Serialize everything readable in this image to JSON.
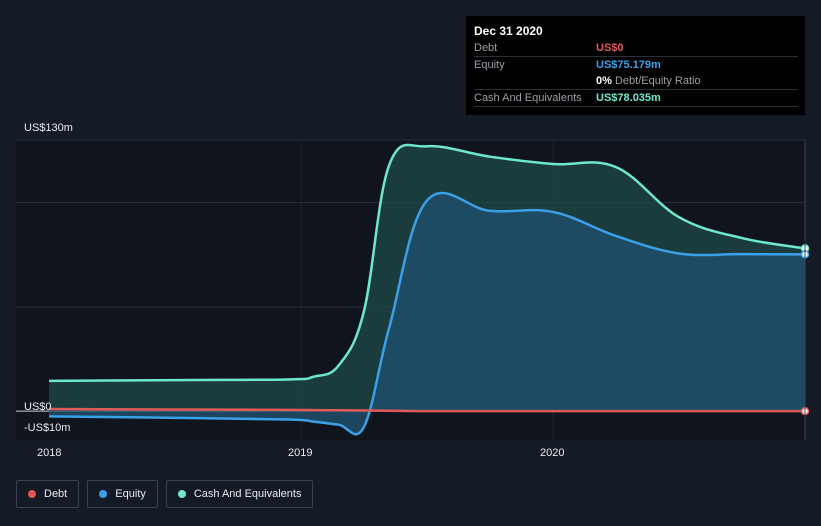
{
  "tooltip": {
    "date": "Dec 31 2020",
    "rows": [
      {
        "label": "Debt",
        "value": "US$0",
        "color": "#e05a5a"
      },
      {
        "label": "Equity",
        "value": "US$75.179m",
        "color": "#3aa0e8"
      },
      {
        "label": "",
        "value": "0%",
        "sub": "Debt/Equity Ratio",
        "color": "#ffffff"
      },
      {
        "label": "Cash And Equivalents",
        "value": "US$78.035m",
        "color": "#6ee7cf"
      }
    ]
  },
  "chart_data": {
    "type": "area",
    "title": "",
    "xlabel": "",
    "ylabel": "",
    "ylim": [
      -10,
      130
    ],
    "y_tick_labels": [
      "US$130m",
      "US$0",
      "-US$10m"
    ],
    "x_tick_labels": [
      "2018",
      "2019",
      "2020"
    ],
    "x": [
      2018.0,
      2018.5,
      2018.95,
      2019.05,
      2019.15,
      2019.25,
      2019.35,
      2019.5,
      2019.75,
      2020.0,
      2020.25,
      2020.5,
      2020.75,
      2021.0
    ],
    "series": [
      {
        "name": "Debt",
        "color": "#e05a5a",
        "values": [
          1,
          0.8,
          0.6,
          0.5,
          0.4,
          0.3,
          0.2,
          0,
          0,
          0,
          0,
          0,
          0,
          0
        ]
      },
      {
        "name": "Equity",
        "color": "#3aa0e8",
        "values": [
          -2.5,
          -3.2,
          -4,
          -5,
          -6.5,
          -7.5,
          40,
          101,
          96,
          95.5,
          84,
          75.6,
          75.3,
          75.179
        ]
      },
      {
        "name": "Cash And Equivalents",
        "color": "#6ee7cf",
        "values": [
          14.5,
          14.9,
          15.2,
          16.5,
          22,
          48,
          118,
          127,
          122,
          118.5,
          117,
          93,
          83,
          78.035
        ]
      }
    ],
    "legend": [
      "Debt",
      "Equity",
      "Cash And Equivalents"
    ],
    "grid": true,
    "legend_position": "bottom-left"
  }
}
